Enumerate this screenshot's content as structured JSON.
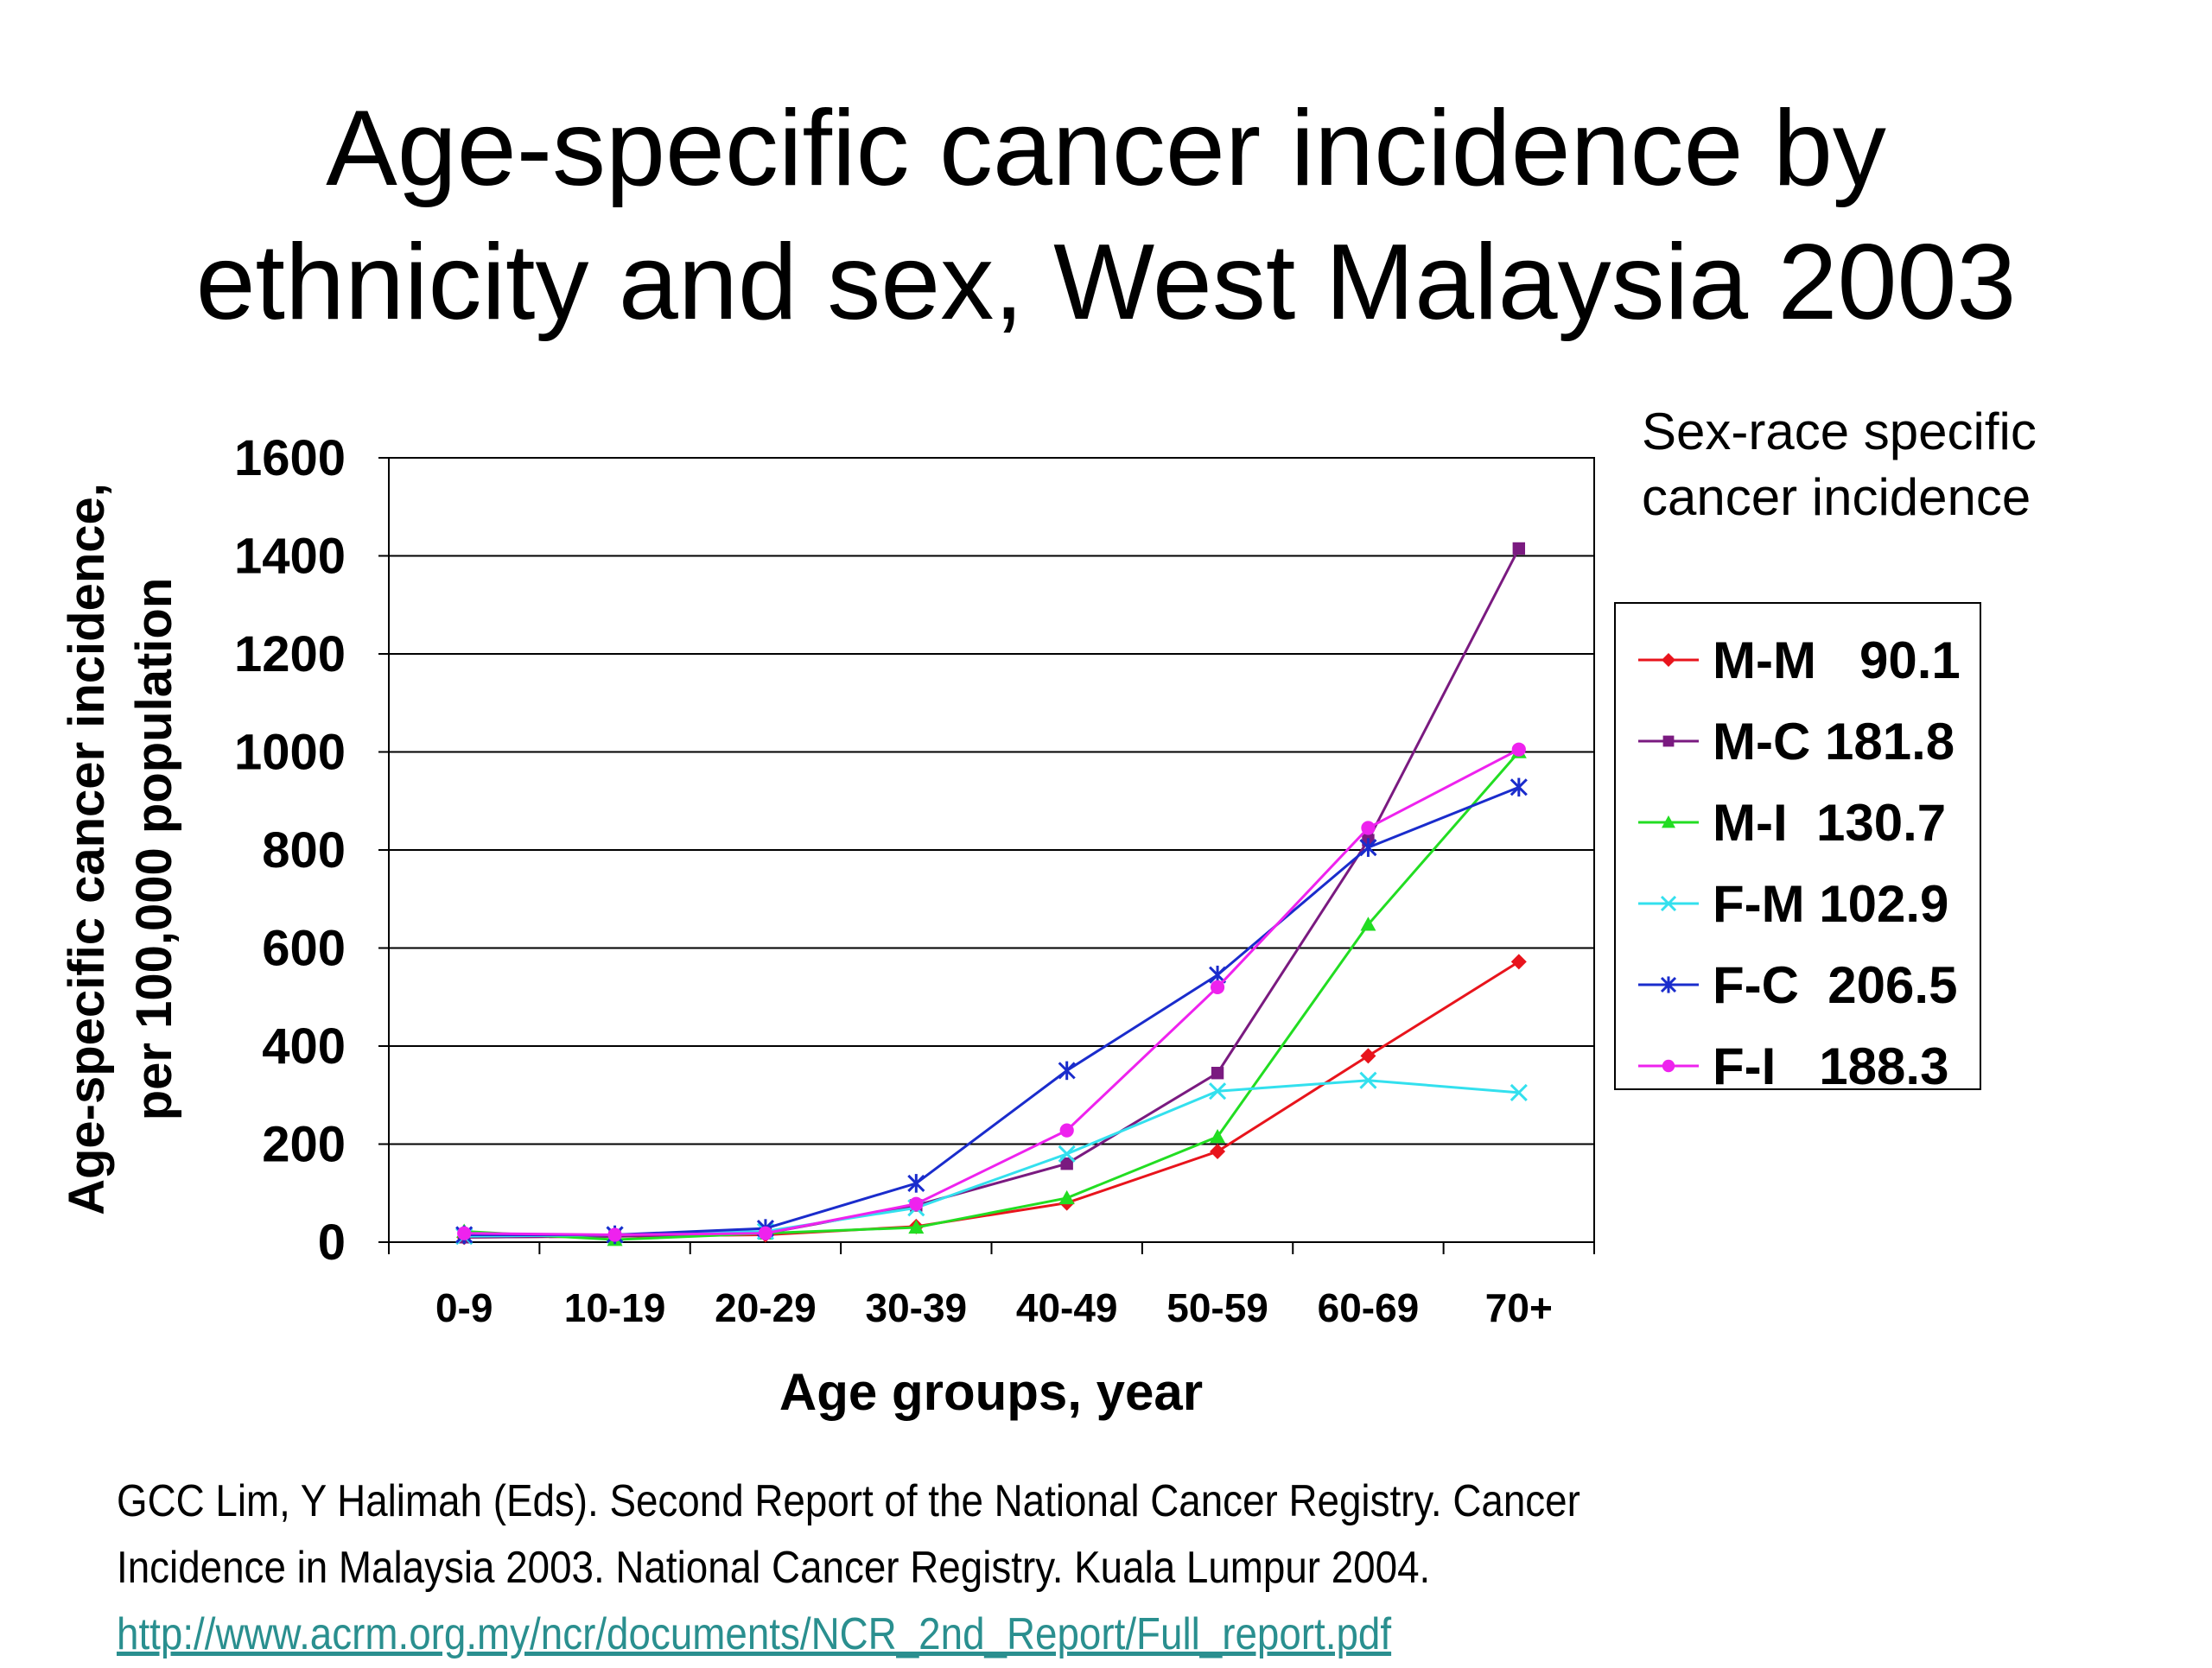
{
  "title_lines": [
    "Age-specific cancer incidence by",
    "ethnicity and sex, West Malaysia 2003"
  ],
  "legend_heading_lines": [
    "Sex-race specific",
    "cancer incidence"
  ],
  "citation": {
    "line1": "GCC Lim, Y Halimah (Eds). Second Report of the National Cancer Registry. Cancer",
    "line2": "Incidence in Malaysia 2003. National Cancer Registry. Kuala Lumpur 2004.",
    "link": "http://www.acrm.org.my/ncr/documents/NCR_2nd_Report/Full_report.pdf"
  },
  "chart_data": {
    "type": "line",
    "xlabel": "Age groups, year",
    "ylabel_lines": [
      "Age-specific cancer incidence,",
      "per 100,000 population"
    ],
    "categories": [
      "0-9",
      "10-19",
      "20-29",
      "30-39",
      "40-49",
      "50-59",
      "60-69",
      "70+"
    ],
    "ylim": [
      0,
      1600
    ],
    "yticks": [
      0,
      200,
      400,
      600,
      800,
      1000,
      1200,
      1400,
      1600
    ],
    "grid": true,
    "legend_position": "right",
    "series": [
      {
        "name": "M-M",
        "label": "M-M   90.1",
        "color": "#e8141c",
        "marker": "diamond",
        "values": [
          10,
          12,
          15,
          32,
          80,
          185,
          380,
          572
        ]
      },
      {
        "name": "M-C",
        "label": "M-C 181.8",
        "color": "#7a1a80",
        "marker": "square",
        "values": [
          10,
          12,
          18,
          75,
          160,
          345,
          820,
          1415
        ]
      },
      {
        "name": "M-I",
        "label": "M-I  130.7",
        "color": "#22dd22",
        "marker": "triangle",
        "values": [
          22,
          5,
          18,
          30,
          90,
          215,
          648,
          1000
        ]
      },
      {
        "name": "F-M",
        "label": "F-M 102.9",
        "color": "#33e0ee",
        "marker": "x",
        "values": [
          12,
          15,
          22,
          70,
          180,
          308,
          330,
          305
        ]
      },
      {
        "name": "F-C",
        "label": "F-C  206.5",
        "color": "#1a2ccc",
        "marker": "star",
        "values": [
          15,
          15,
          28,
          120,
          350,
          545,
          805,
          928
        ]
      },
      {
        "name": "F-I",
        "label": "F-I   188.3",
        "color": "#ee22ee",
        "marker": "circle",
        "values": [
          18,
          15,
          18,
          78,
          228,
          520,
          845,
          1005
        ]
      }
    ]
  }
}
